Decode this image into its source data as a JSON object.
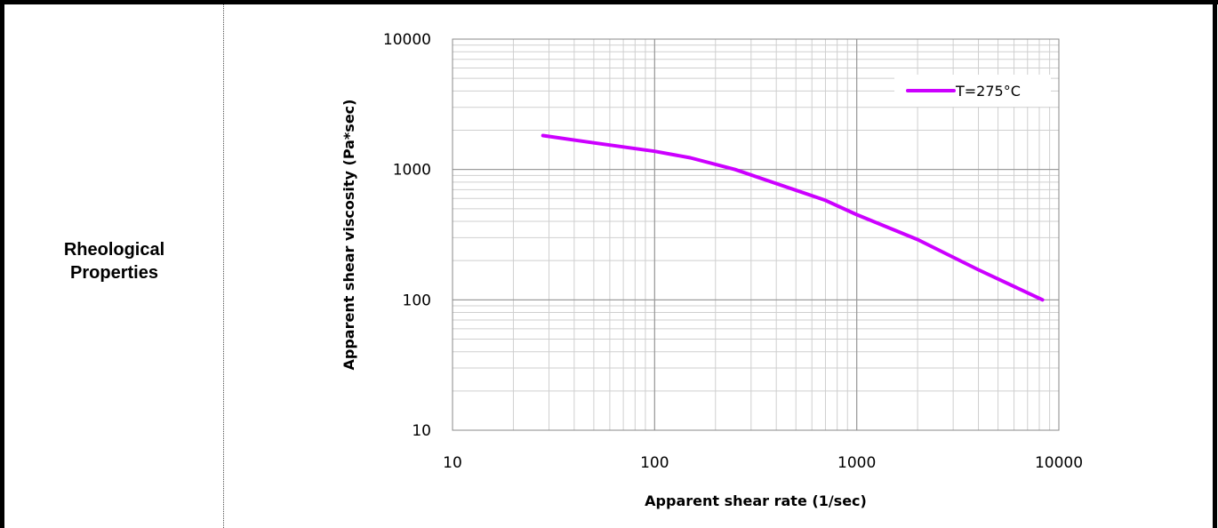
{
  "row": {
    "label_line1": "Rheological",
    "label_line2": "Properties"
  },
  "chart_data": {
    "type": "line",
    "x_scale": "log",
    "y_scale": "log",
    "xlim": [
      10,
      10000
    ],
    "ylim": [
      10,
      10000
    ],
    "x_ticks": [
      "10",
      "100",
      "1000",
      "10000"
    ],
    "y_ticks": [
      "10",
      "100",
      "1000",
      "10000"
    ],
    "xlabel": "Apparent shear rate (1/sec)",
    "ylabel": "Apparent shear viscosity (Pa*sec)",
    "grid": true,
    "legend_position": "top-right",
    "series": [
      {
        "name": "T=275°C",
        "color": "#cc00ff",
        "x": [
          28,
          50,
          100,
          150,
          250,
          400,
          700,
          1000,
          2000,
          4000,
          8300
        ],
        "y": [
          1820,
          1600,
          1380,
          1230,
          1000,
          780,
          580,
          450,
          290,
          170,
          100
        ]
      }
    ]
  }
}
